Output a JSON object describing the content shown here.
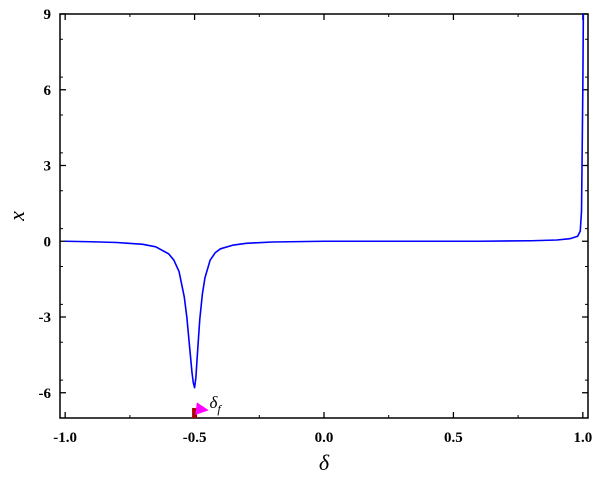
{
  "chart_data": {
    "type": "line",
    "title": "",
    "xlabel": "δ",
    "ylabel": "x",
    "xlim": [
      -1.02,
      1.02
    ],
    "ylim": [
      -7,
      9
    ],
    "x_ticks": [
      -1.0,
      -0.5,
      0.0,
      0.5,
      1.0
    ],
    "x_tick_labels": [
      "-1.0",
      "-0.5",
      "0.0",
      "0.5",
      "1.0"
    ],
    "y_ticks": [
      -6,
      -3,
      0,
      3,
      6,
      9
    ],
    "y_tick_labels": [
      "-6",
      "-3",
      "0",
      "3",
      "6",
      "9"
    ],
    "grid": false,
    "series": [
      {
        "color": "#0000ff",
        "x": [
          -1.0,
          -0.9,
          -0.8,
          -0.7,
          -0.65,
          -0.6,
          -0.58,
          -0.56,
          -0.54,
          -0.53,
          -0.52,
          -0.51,
          -0.505,
          -0.5,
          -0.495,
          -0.49,
          -0.48,
          -0.47,
          -0.46,
          -0.44,
          -0.42,
          -0.4,
          -0.35,
          -0.3,
          -0.2,
          0.0,
          0.2,
          0.4,
          0.6,
          0.8,
          0.9,
          0.95,
          0.98,
          0.99,
          0.995,
          1.0,
          1.002
        ],
        "y": [
          0.0,
          -0.02,
          -0.05,
          -0.12,
          -0.22,
          -0.5,
          -0.75,
          -1.2,
          -2.2,
          -3.0,
          -4.1,
          -5.2,
          -5.6,
          -5.8,
          -5.4,
          -4.6,
          -3.1,
          -2.1,
          -1.45,
          -0.75,
          -0.45,
          -0.3,
          -0.15,
          -0.08,
          -0.03,
          0.0,
          0.0,
          0.0,
          0.0,
          0.02,
          0.05,
          0.1,
          0.2,
          0.4,
          1.2,
          6.0,
          9.0
        ]
      }
    ],
    "annotations": [
      {
        "text": "δ",
        "subscript": "f",
        "x": -0.45,
        "y": -6.6
      }
    ],
    "marker": {
      "x": -0.5,
      "color": "#aa0000"
    },
    "arrow_color": "#ff00ff"
  }
}
